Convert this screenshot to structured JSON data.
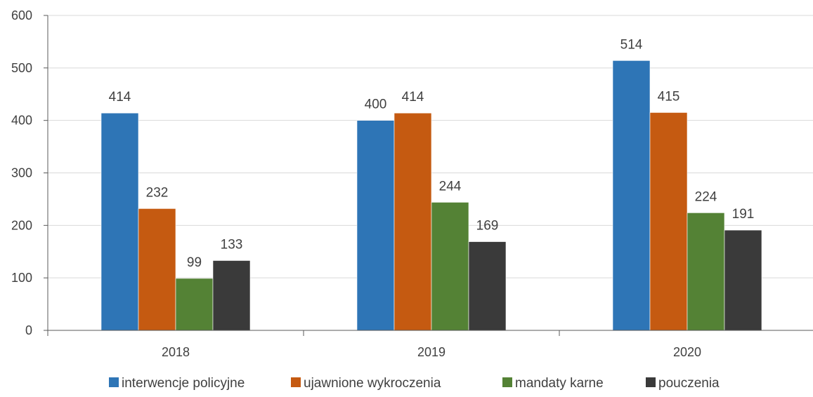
{
  "chart_data": {
    "type": "bar",
    "title": "",
    "xlabel": "",
    "ylabel": "",
    "categories": [
      "2018",
      "2019",
      "2020"
    ],
    "ylim": [
      0,
      600
    ],
    "yticks": [
      0,
      100,
      200,
      300,
      400,
      500,
      600
    ],
    "grid": true,
    "legend_position": "bottom",
    "data_labels": true,
    "series": [
      {
        "name": "interwencje policyjne",
        "color": "#2e75b6",
        "values": [
          414,
          400,
          514
        ]
      },
      {
        "name": "ujawnione wykroczenia",
        "color": "#c55a11",
        "values": [
          232,
          414,
          415
        ]
      },
      {
        "name": "mandaty karne",
        "color": "#548235",
        "values": [
          99,
          244,
          224
        ]
      },
      {
        "name": "pouczenia",
        "color": "#3a3a3a",
        "values": [
          133,
          169,
          191
        ]
      }
    ]
  }
}
